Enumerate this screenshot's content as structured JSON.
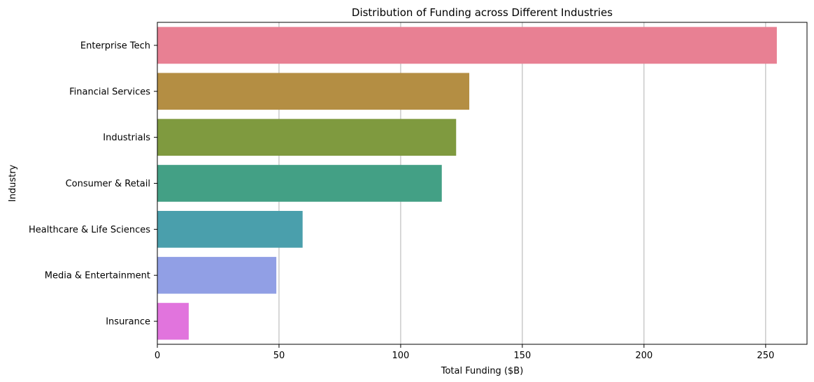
{
  "chart_data": {
    "type": "bar",
    "orientation": "horizontal",
    "title": "Distribution of Funding across Different Industries",
    "xlabel": "Total Funding ($B)",
    "ylabel": "Industry",
    "xlim": [
      0,
      267
    ],
    "xticks": [
      0,
      50,
      100,
      150,
      200,
      250
    ],
    "grid": "x",
    "categories": [
      "Enterprise Tech",
      "Financial Services",
      "Industrials",
      "Consumer & Retail",
      "Healthcare & Life Sciences",
      "Media & Entertainment",
      "Insurance"
    ],
    "values": [
      254.6,
      128.2,
      122.8,
      116.9,
      59.7,
      48.9,
      12.9
    ],
    "colors": [
      "#e88093",
      "#b48e43",
      "#7f9a3f",
      "#43a085",
      "#4a9fac",
      "#919fe5",
      "#e174dd"
    ]
  }
}
